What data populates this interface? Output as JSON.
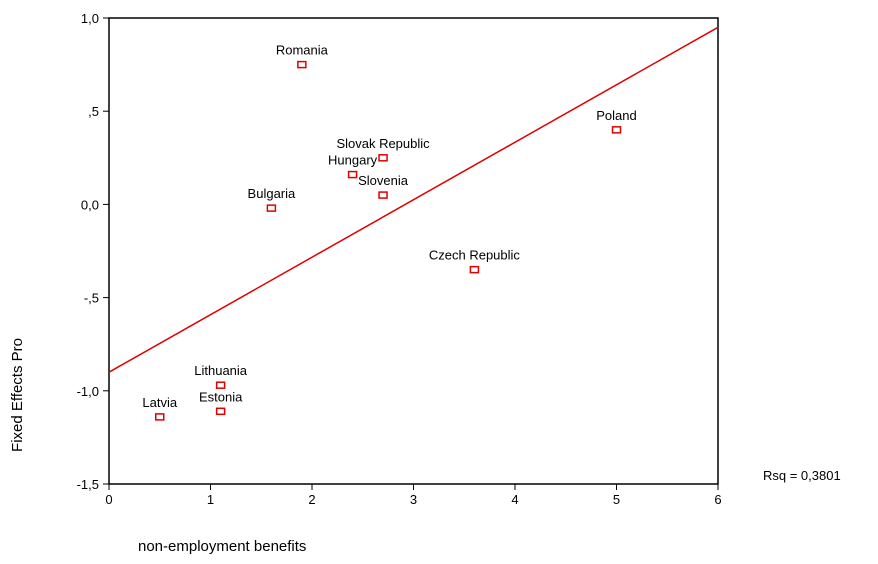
{
  "chart_data": {
    "type": "scatter",
    "xlabel": "non-employment benefits",
    "ylabel": "Fixed Effects Pro",
    "xlim": [
      0,
      6
    ],
    "ylim": [
      -1.5,
      1.0
    ],
    "x_ticks": [
      0,
      1,
      2,
      3,
      4,
      5,
      6
    ],
    "x_tick_labels": [
      "0",
      "1",
      "2",
      "3",
      "4",
      "5",
      "6"
    ],
    "y_ticks": [
      1.0,
      0.5,
      0.0,
      -0.5,
      -1.0,
      -1.5
    ],
    "y_tick_labels": [
      "1,0",
      ",5",
      "0,0",
      "-,5",
      "-1,0",
      "-1,5"
    ],
    "grid": false,
    "points": [
      {
        "label": "Romania",
        "x": 1.9,
        "y": 0.75
      },
      {
        "label": "Poland",
        "x": 5.0,
        "y": 0.4
      },
      {
        "label": "Slovak Republic",
        "x": 2.7,
        "y": 0.25
      },
      {
        "label": "Hungary",
        "x": 2.4,
        "y": 0.16
      },
      {
        "label": "Slovenia",
        "x": 2.7,
        "y": 0.05
      },
      {
        "label": "Bulgaria",
        "x": 1.6,
        "y": -0.02
      },
      {
        "label": "Czech Republic",
        "x": 3.6,
        "y": -0.35
      },
      {
        "label": "Lithuania",
        "x": 1.1,
        "y": -0.97
      },
      {
        "label": "Estonia",
        "x": 1.1,
        "y": -1.11
      },
      {
        "label": "Latvia",
        "x": 0.5,
        "y": -1.14
      }
    ],
    "fit_line": {
      "x": [
        0,
        6
      ],
      "y": [
        -0.9,
        0.95
      ]
    },
    "rsq_label": "Rsq = 0,3801",
    "marker_color": "#e00000",
    "line_color": "#e00000"
  }
}
